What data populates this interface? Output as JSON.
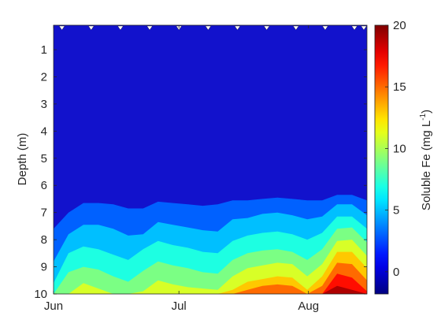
{
  "chart_data": {
    "type": "heatmap",
    "subtype": "filled-contour",
    "title": "",
    "xlabel": "",
    "ylabel": "Depth (m)",
    "x_tick_labels": [
      "Jun",
      "Jul",
      "Aug"
    ],
    "x_tick_dates": [
      "2020-06-01",
      "2020-07-01",
      "2020-08-01"
    ],
    "x_range": [
      "2020-06-01",
      "2020-08-15"
    ],
    "y_range": [
      0.1,
      10
    ],
    "y_reversed": true,
    "y_ticks": [
      1,
      2,
      3,
      4,
      5,
      6,
      7,
      8,
      9,
      10
    ],
    "colorbar": {
      "label": "Soluble Fe (mg L⁻¹)",
      "label_main": "Soluble Fe (mg L",
      "label_exp": "-1",
      "label_close": ")",
      "colormap": "jet",
      "range": [
        -1.8,
        20
      ],
      "ticks": [
        0,
        5,
        10,
        15,
        20
      ]
    },
    "sample_dates": [
      "2020-06-03",
      "2020-06-10",
      "2020-06-17",
      "2020-06-24",
      "2020-07-01",
      "2020-07-08",
      "2020-07-15",
      "2020-07-22",
      "2020-07-29",
      "2020-08-05",
      "2020-08-12",
      "2020-08-15"
    ],
    "contour_levels": [
      2,
      4,
      6,
      8,
      10,
      12,
      14,
      16,
      18
    ],
    "contour_depths": [
      [
        7.6,
        7.0,
        6.65,
        6.65,
        6.7,
        6.85,
        6.85,
        6.6,
        6.65,
        6.7,
        6.75,
        6.7,
        6.55,
        6.55,
        6.5,
        6.45,
        6.5,
        6.55,
        6.55,
        6.35,
        6.35,
        6.55
      ],
      [
        8.8,
        7.8,
        7.45,
        7.45,
        7.6,
        7.85,
        7.8,
        7.35,
        7.45,
        7.55,
        7.65,
        7.7,
        7.25,
        7.2,
        7.05,
        7.0,
        7.1,
        7.25,
        7.15,
        6.7,
        6.7,
        7.1
      ],
      [
        9.6,
        8.5,
        8.25,
        8.35,
        8.55,
        8.75,
        8.35,
        8.05,
        8.2,
        8.3,
        8.45,
        8.5,
        8.05,
        7.85,
        7.75,
        7.7,
        7.8,
        8.0,
        7.75,
        7.15,
        7.15,
        7.6
      ],
      [
        10.0,
        9.2,
        9.0,
        9.1,
        9.35,
        9.55,
        9.15,
        8.8,
        8.95,
        9.05,
        9.2,
        9.25,
        8.75,
        8.5,
        8.4,
        8.35,
        8.45,
        8.75,
        8.35,
        7.6,
        7.55,
        8.1
      ],
      [
        10.0,
        10.0,
        9.6,
        9.8,
        10.0,
        10.0,
        9.9,
        9.5,
        9.65,
        9.75,
        9.8,
        9.85,
        9.35,
        9.05,
        8.95,
        8.85,
        8.9,
        9.35,
        8.9,
        8.05,
        8.0,
        8.6
      ],
      [
        10.0,
        10.0,
        10.0,
        10.0,
        10.0,
        10.0,
        10.0,
        10.0,
        10.0,
        10.0,
        10.0,
        10.0,
        9.85,
        9.55,
        9.45,
        9.35,
        9.4,
        9.85,
        9.35,
        8.45,
        8.45,
        9.05
      ],
      [
        10.0,
        10.0,
        10.0,
        10.0,
        10.0,
        10.0,
        10.0,
        10.0,
        10.0,
        10.0,
        10.0,
        10.0,
        10.0,
        9.85,
        9.7,
        9.65,
        9.7,
        10.0,
        9.7,
        8.85,
        8.9,
        9.5
      ],
      [
        10.0,
        10.0,
        10.0,
        10.0,
        10.0,
        10.0,
        10.0,
        10.0,
        10.0,
        10.0,
        10.0,
        10.0,
        10.0,
        10.0,
        10.0,
        10.0,
        10.0,
        10.0,
        10.0,
        9.25,
        9.4,
        9.9
      ],
      [
        10.0,
        10.0,
        10.0,
        10.0,
        10.0,
        10.0,
        10.0,
        10.0,
        10.0,
        10.0,
        10.0,
        10.0,
        10.0,
        10.0,
        10.0,
        10.0,
        10.0,
        10.0,
        10.0,
        9.7,
        9.85,
        10.0
      ]
    ],
    "grid": false,
    "legend": "colorbar-right"
  }
}
